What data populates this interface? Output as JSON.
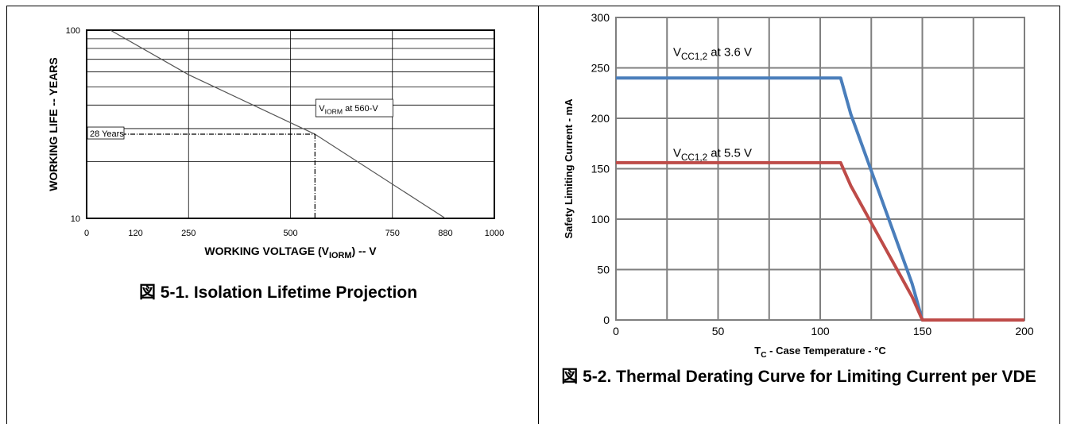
{
  "captions": {
    "fig1": "図 5-1. Isolation Lifetime Projection",
    "fig2": "図 5-2. Thermal Derating Curve for Limiting Current per VDE"
  },
  "chart_data": [
    {
      "type": "line",
      "xlabel": "WORKING VOLTAGE (VIORM) -- V",
      "xlabel_main": "WORKING VOLTAGE (V",
      "xlabel_sub": "IORM",
      "xlabel_tail": ") -- V",
      "ylabel": "WORKING LIFE -- YEARS",
      "xlim": [
        0,
        1000
      ],
      "ylim": [
        10,
        100
      ],
      "yscale": "log",
      "x_ticks": [
        0,
        120,
        250,
        500,
        750,
        880,
        1000
      ],
      "y_ticks": [
        10,
        100
      ],
      "x_gridlines": [
        250,
        500,
        750
      ],
      "y_gridlines": [
        20,
        30,
        40,
        50,
        60,
        70,
        80,
        90
      ],
      "series": [
        {
          "x": [
            0,
            250,
            560,
            880
          ],
          "y": [
            118,
            58,
            28,
            10
          ]
        }
      ],
      "reference": {
        "x": 560,
        "y": 28,
        "label": "28 Years"
      },
      "annotation": {
        "main": "V",
        "sub": "IORM",
        "tail": " at 560-V"
      },
      "grid": true,
      "colors": {
        "line": "#555555",
        "grid": "#000000"
      }
    },
    {
      "type": "line",
      "xlabel": "TC - Case Temperature - °C",
      "xlabel_main": "T",
      "xlabel_sub": "C",
      "xlabel_tail": " - Case Temperature - °C",
      "ylabel": "Safety Limiting Current - mA",
      "xlim": [
        0,
        200
      ],
      "ylim": [
        0,
        300
      ],
      "x_ticks": [
        0,
        50,
        100,
        150,
        200
      ],
      "y_ticks": [
        0,
        50,
        100,
        150,
        200,
        250,
        300
      ],
      "grid": true,
      "series": [
        {
          "label_main": "V",
          "label_sub": "CC1,2",
          "label_tail": " at 3.6 V",
          "color": "#4a7ebb",
          "x": [
            0,
            110,
            115,
            130,
            145,
            150,
            200
          ],
          "y": [
            240,
            240,
            204,
            120,
            36,
            0,
            0
          ]
        },
        {
          "label_main": "V",
          "label_sub": "CC1,2",
          "label_tail": " at 5.5 V",
          "color": "#be4b48",
          "x": [
            0,
            110,
            115,
            130,
            145,
            150,
            200
          ],
          "y": [
            156,
            156,
            133,
            78,
            23,
            0,
            0
          ]
        }
      ]
    }
  ]
}
